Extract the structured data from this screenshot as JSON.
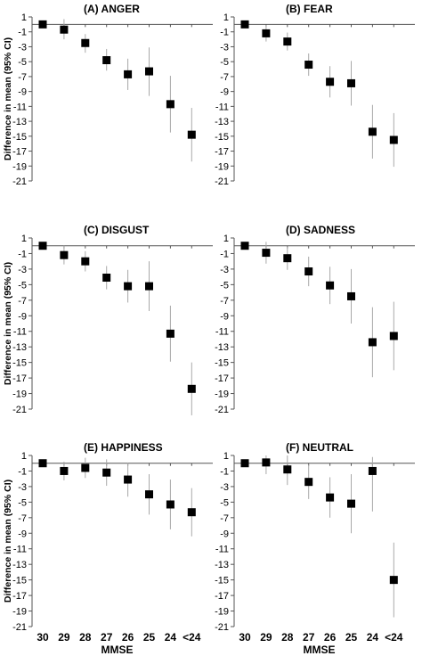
{
  "chart_data": [
    {
      "type": "scatter",
      "title": "(A)    ANGER",
      "categories": [
        "30",
        "29",
        "28",
        "27",
        "26",
        "25",
        "24",
        "<24"
      ],
      "ylabel": "Difference in mean (95% CI)",
      "xlabel": "",
      "ylim": [
        -21,
        1
      ],
      "yticks": [
        1,
        -1,
        -3,
        -5,
        -7,
        -9,
        -11,
        -13,
        -15,
        -17,
        -19,
        -21
      ],
      "grid": false,
      "series": [
        {
          "values": [
            0,
            -0.7,
            -2.5,
            -4.8,
            -6.7,
            -6.3,
            -10.7,
            -14.8
          ],
          "ci_low": [
            -0.3,
            -2.0,
            -3.8,
            -6.2,
            -8.8,
            -9.6,
            -14.5,
            -18.4
          ],
          "ci_high": [
            0.2,
            0.7,
            -1.3,
            -3.3,
            -4.6,
            -3.1,
            -6.9,
            -11.2
          ]
        }
      ]
    },
    {
      "type": "scatter",
      "title": "(B)    FEAR",
      "categories": [
        "30",
        "29",
        "28",
        "27",
        "26",
        "25",
        "24",
        "<24"
      ],
      "ylabel": "",
      "xlabel": "",
      "ylim": [
        -21,
        1
      ],
      "yticks": [
        1,
        -1,
        -3,
        -5,
        -7,
        -9,
        -11,
        -13,
        -15,
        -17,
        -19,
        -21
      ],
      "grid": false,
      "series": [
        {
          "values": [
            0,
            -1.2,
            -2.3,
            -5.4,
            -7.7,
            -7.9,
            -14.4,
            -15.5
          ],
          "ci_low": [
            -0.3,
            -2.3,
            -3.5,
            -6.9,
            -9.8,
            -10.9,
            -18.0,
            -19.1
          ],
          "ci_high": [
            0.2,
            -0.1,
            -1.1,
            -3.9,
            -5.6,
            -4.9,
            -10.8,
            -11.9
          ]
        }
      ]
    },
    {
      "type": "scatter",
      "title": "(C)    DISGUST",
      "categories": [
        "30",
        "29",
        "28",
        "27",
        "26",
        "25",
        "24",
        "<24"
      ],
      "ylabel": "Difference in mean (95% CI)",
      "xlabel": "",
      "ylim": [
        -21,
        1
      ],
      "yticks": [
        1,
        -1,
        -3,
        -5,
        -7,
        -9,
        -11,
        -13,
        -15,
        -17,
        -19,
        -21
      ],
      "grid": false,
      "series": [
        {
          "values": [
            0,
            -1.2,
            -2.0,
            -4.1,
            -5.2,
            -5.2,
            -11.3,
            -18.4
          ],
          "ci_low": [
            -0.3,
            -2.4,
            -3.3,
            -5.6,
            -7.3,
            -8.4,
            -14.9,
            -21.8
          ],
          "ci_high": [
            0.2,
            0.0,
            -0.7,
            -2.6,
            -3.1,
            -2.0,
            -7.7,
            -15.0
          ]
        }
      ]
    },
    {
      "type": "scatter",
      "title": "(D)    SADNESS",
      "categories": [
        "30",
        "29",
        "28",
        "27",
        "26",
        "25",
        "24",
        "<24"
      ],
      "ylabel": "",
      "xlabel": "",
      "ylim": [
        -21,
        1
      ],
      "yticks": [
        1,
        -1,
        -3,
        -5,
        -7,
        -9,
        -11,
        -13,
        -15,
        -17,
        -19,
        -21
      ],
      "grid": false,
      "series": [
        {
          "values": [
            0,
            -0.9,
            -1.6,
            -3.3,
            -5.1,
            -6.5,
            -12.4,
            -11.6
          ],
          "ci_low": [
            -0.3,
            -2.3,
            -3.1,
            -5.2,
            -7.5,
            -10.0,
            -16.9,
            -16.0
          ],
          "ci_high": [
            0.2,
            0.5,
            -0.1,
            -1.4,
            -2.7,
            -3.0,
            -7.9,
            -7.2
          ]
        }
      ]
    },
    {
      "type": "scatter",
      "title": "(E)    HAPPINESS",
      "categories": [
        "30",
        "29",
        "28",
        "27",
        "26",
        "25",
        "24",
        "<24"
      ],
      "ylabel": "Difference in mean (95% CI)",
      "xlabel": "MMSE",
      "ylim": [
        -21,
        1
      ],
      "yticks": [
        1,
        -1,
        -3,
        -5,
        -7,
        -9,
        -11,
        -13,
        -15,
        -17,
        -19,
        -21
      ],
      "grid": false,
      "series": [
        {
          "values": [
            0,
            -1.0,
            -0.6,
            -1.2,
            -2.1,
            -4.0,
            -5.3,
            -6.3
          ],
          "ci_low": [
            -0.3,
            -2.2,
            -1.9,
            -2.9,
            -4.3,
            -6.6,
            -8.5,
            -9.4
          ],
          "ci_high": [
            0.2,
            0.2,
            0.7,
            0.5,
            0.1,
            -1.4,
            -2.1,
            -3.2
          ]
        }
      ]
    },
    {
      "type": "scatter",
      "title": "(F)    NEUTRAL",
      "categories": [
        "30",
        "29",
        "28",
        "27",
        "26",
        "25",
        "24",
        "<24"
      ],
      "ylabel": "",
      "xlabel": "MMSE",
      "ylim": [
        -21,
        1
      ],
      "yticks": [
        1,
        -1,
        -3,
        -5,
        -7,
        -9,
        -11,
        -13,
        -15,
        -17,
        -19,
        -21
      ],
      "grid": false,
      "series": [
        {
          "values": [
            0,
            0.1,
            -0.8,
            -2.4,
            -4.4,
            -5.2,
            -1.0,
            -15.0
          ],
          "ci_low": [
            -0.3,
            -1.4,
            -2.8,
            -4.6,
            -7.0,
            -9.0,
            -6.2,
            -19.8
          ],
          "ci_high": [
            0.2,
            1.0,
            1.0,
            -0.2,
            -1.8,
            -1.4,
            0.8,
            -10.2
          ]
        }
      ]
    }
  ]
}
